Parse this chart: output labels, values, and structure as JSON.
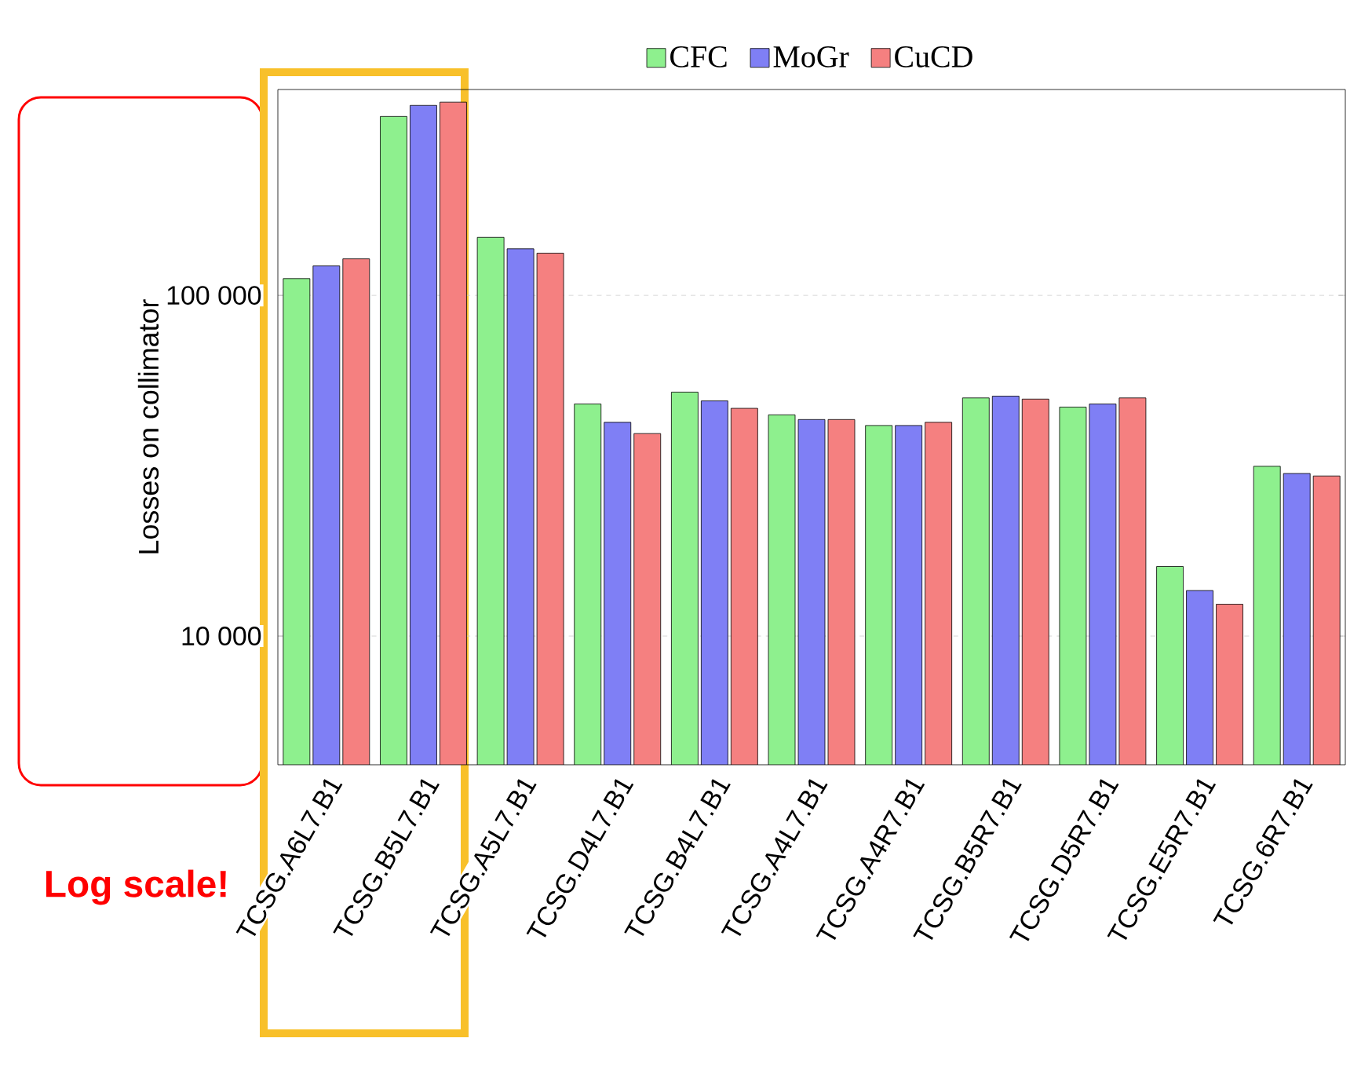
{
  "chart_data": {
    "type": "bar",
    "ylabel": "Losses on collimator",
    "categories": [
      "TCSG.A6L7.B1",
      "TCSG.B5L7.B1",
      "TCSG.A5L7.B1",
      "TCSG.D4L7.B1",
      "TCSG.B4L7.B1",
      "TCSG.A4L7.B1",
      "TCSG.A4R7.B1",
      "TCSG.B5R7.B1",
      "TCSG.D5R7.B1",
      "TCSG.E5R7.B1",
      "TCSG.6R7.B1"
    ],
    "series": [
      {
        "name": "CFC",
        "color": "#8ef08e",
        "values": [
          112000,
          335000,
          148000,
          48000,
          52000,
          44600,
          41500,
          50000,
          47000,
          16000,
          31500
        ]
      },
      {
        "name": "MoGr",
        "color": "#7f7ff5",
        "values": [
          122000,
          361000,
          137000,
          42400,
          49000,
          43200,
          41500,
          50600,
          48000,
          13600,
          30000
        ]
      },
      {
        "name": "CuCD",
        "color": "#f58080",
        "values": [
          128000,
          369000,
          133000,
          39300,
          46600,
          43200,
          42400,
          49600,
          50000,
          12400,
          29500
        ]
      }
    ],
    "log": "y",
    "ylim": [
      4190,
      402000
    ],
    "yticks": [
      {
        "value": 10000,
        "label": "10 000"
      },
      {
        "value": 100000,
        "label": "100 000"
      }
    ],
    "grid": "y",
    "legend": "top",
    "annotations": [
      "Log scale!"
    ]
  }
}
